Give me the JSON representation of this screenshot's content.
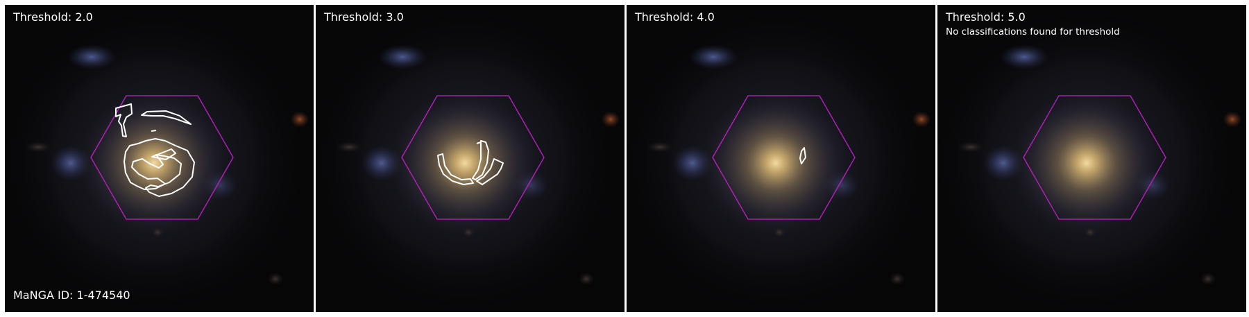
{
  "panels": [
    {
      "title": "Threshold: 2.0",
      "note": ""
    },
    {
      "title": "Threshold: 3.0",
      "note": ""
    },
    {
      "title": "Threshold: 4.0",
      "note": ""
    },
    {
      "title": "Threshold: 5.0",
      "note": "No classifications found for threshold"
    }
  ],
  "galaxy_label": "MaNGA ID: 1-474540",
  "colors": {
    "background": "#ffffff",
    "sky": "#060607",
    "hexagon": "#c21fc8",
    "contour": "#ffffff",
    "text": "#ffffff"
  }
}
